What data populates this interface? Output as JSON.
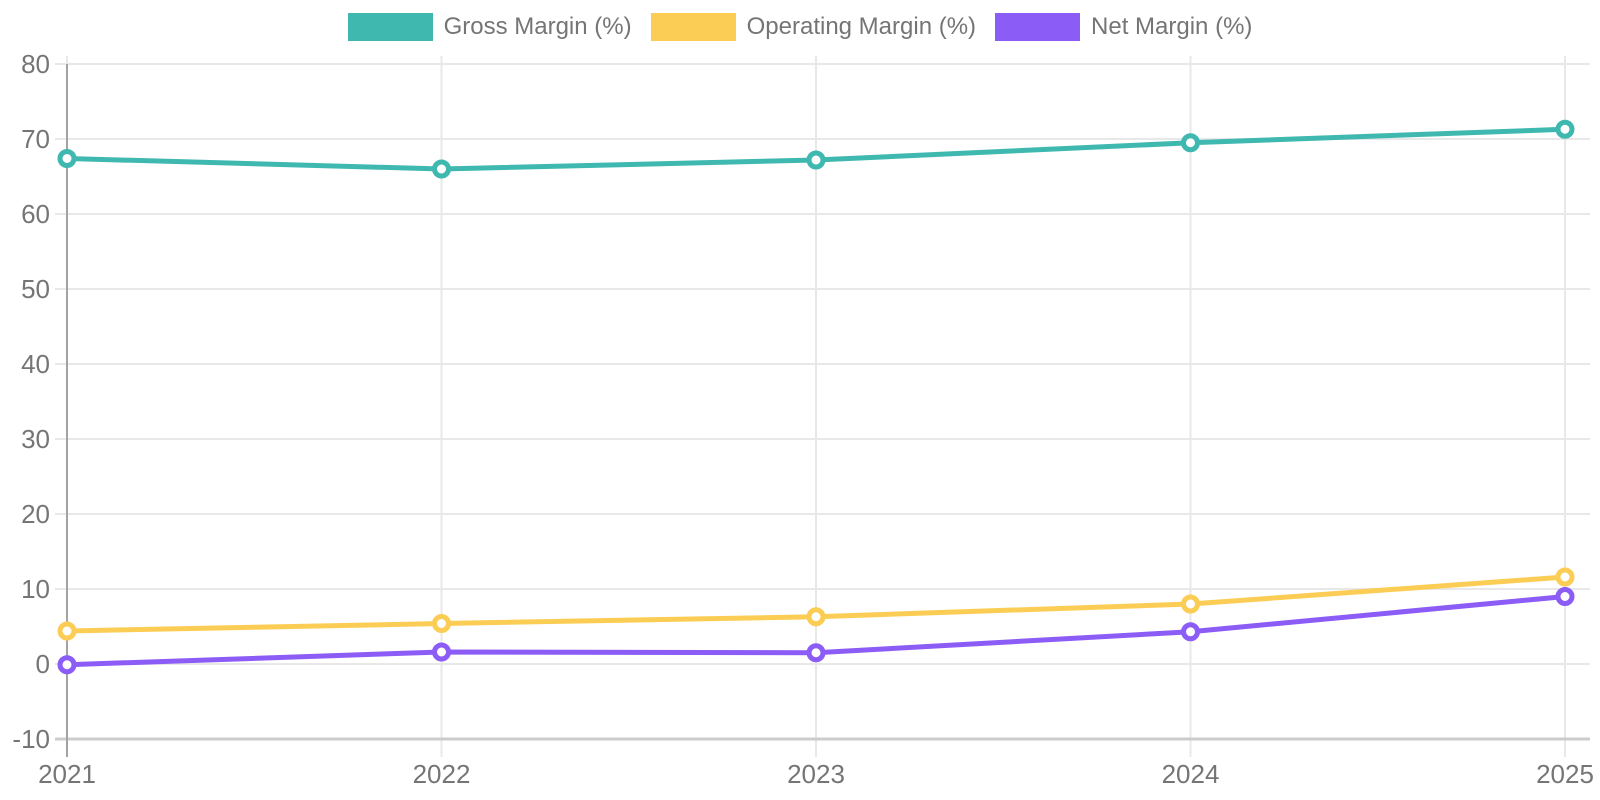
{
  "chart_data": {
    "type": "line",
    "x": [
      "2021",
      "2022",
      "2023",
      "2024",
      "2025"
    ],
    "series": [
      {
        "name": "Gross Margin (%)",
        "color": "#3fb8b0",
        "values": [
          67.4,
          66.0,
          67.2,
          69.5,
          71.3
        ]
      },
      {
        "name": "Operating Margin (%)",
        "color": "#fbcd55",
        "values": [
          4.4,
          5.4,
          6.3,
          8.0,
          11.6
        ]
      },
      {
        "name": "Net Margin (%)",
        "color": "#8b5cf6",
        "values": [
          -0.1,
          1.6,
          1.5,
          4.3,
          9.0
        ]
      }
    ],
    "title": "",
    "xlabel": "",
    "ylabel": "",
    "ylim": [
      -10,
      80
    ],
    "yticks": [
      -10,
      0,
      10,
      20,
      30,
      40,
      50,
      60,
      70,
      80
    ],
    "grid": true,
    "legend_position": "top"
  },
  "style": {
    "text_color": "#757575",
    "grid_color": "#e8e8e8",
    "axis_color": "#a3a3a3",
    "baseline_color": "#cccccc",
    "marker_fill": "#ffffff",
    "background": "#ffffff"
  }
}
